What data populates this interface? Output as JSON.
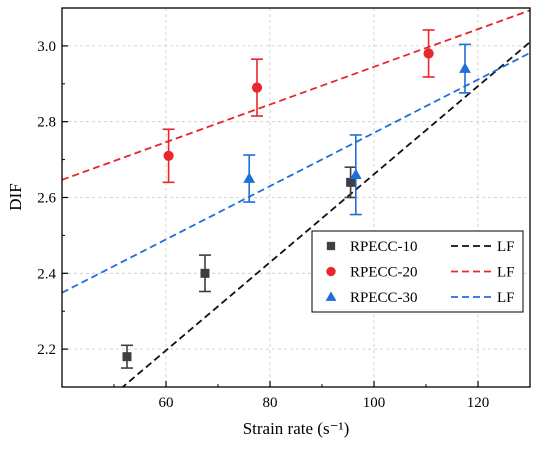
{
  "chart_data": {
    "type": "scatter",
    "xlabel": "Strain rate (s⁻¹)",
    "ylabel": "DIF",
    "xlim": [
      40,
      130
    ],
    "ylim": [
      2.1,
      3.1
    ],
    "xticks": [
      60,
      80,
      100,
      120
    ],
    "yticks": [
      2.2,
      2.4,
      2.6,
      2.8,
      3.0
    ],
    "xtick_labels": [
      "60",
      "80",
      "100",
      "120"
    ],
    "ytick_labels": [
      "2.2",
      "2.4",
      "2.6",
      "2.8",
      "3.0"
    ],
    "grid": true,
    "legend_position": "lower-right",
    "fit_label": "LF",
    "series": [
      {
        "name": "RPECC-10",
        "marker": "square",
        "color": "#3f3f3f",
        "points": [
          {
            "x": 52.5,
            "y": 2.18,
            "err": 0.03
          },
          {
            "x": 67.5,
            "y": 2.4,
            "err": 0.048
          },
          {
            "x": 95.5,
            "y": 2.64,
            "err": 0.04
          }
        ],
        "fit": {
          "slope": 0.01162,
          "intercept": 1.4994
        }
      },
      {
        "name": "RPECC-20",
        "marker": "circle",
        "color": "#e8262b",
        "points": [
          {
            "x": 60.5,
            "y": 2.71,
            "err": 0.07
          },
          {
            "x": 77.5,
            "y": 2.89,
            "err": 0.075
          },
          {
            "x": 110.5,
            "y": 2.98,
            "err": 0.062
          }
        ],
        "fit": {
          "slope": 0.00497,
          "intercept": 2.4478
        }
      },
      {
        "name": "RPECC-30",
        "marker": "triangle",
        "color": "#1e6fd9",
        "points": [
          {
            "x": 76.0,
            "y": 2.65,
            "err": 0.062
          },
          {
            "x": 96.5,
            "y": 2.66,
            "err": 0.105
          },
          {
            "x": 117.5,
            "y": 2.94,
            "err": 0.064
          }
        ],
        "fit": {
          "slope": 0.00703,
          "intercept": 2.0676
        }
      }
    ]
  }
}
